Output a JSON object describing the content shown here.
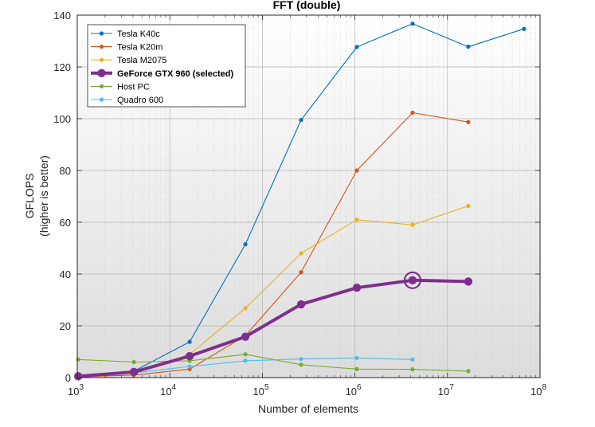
{
  "chart_data": {
    "type": "line",
    "title": "FFT (double)",
    "xlabel": "Number of elements",
    "ylabel_lines": [
      "GFLOPS",
      "(higher is better)"
    ],
    "xscale": "log",
    "xlim": [
      1000,
      100000000
    ],
    "ylim": [
      0,
      140
    ],
    "yticks": [
      0,
      20,
      40,
      60,
      80,
      100,
      120,
      140
    ],
    "xticks": [
      {
        "value": 1000,
        "base": "10",
        "exp": "3"
      },
      {
        "value": 10000,
        "base": "10",
        "exp": "4"
      },
      {
        "value": 100000,
        "base": "10",
        "exp": "5"
      },
      {
        "value": 1000000,
        "base": "10",
        "exp": "6"
      },
      {
        "value": 10000000,
        "base": "10",
        "exp": "7"
      },
      {
        "value": 100000000,
        "base": "10",
        "exp": "8"
      }
    ],
    "grid": true,
    "legend_position": "top-left",
    "series": [
      {
        "name": "Tesla K40c",
        "color": "#0072BD",
        "selected": false,
        "x": [
          1024,
          4096,
          16384,
          65536,
          262144,
          1048576,
          4194304,
          16777216,
          67108864
        ],
        "y": [
          0.5,
          2.5,
          13.8,
          51.5,
          99.5,
          127.7,
          136.7,
          127.8,
          134.7
        ]
      },
      {
        "name": "Tesla K20m",
        "color": "#D95319",
        "selected": false,
        "x": [
          1024,
          4096,
          16384,
          65536,
          262144,
          1048576,
          4194304,
          16777216
        ],
        "y": [
          0.3,
          1.0,
          3.3,
          16.2,
          40.7,
          80.0,
          102.3,
          98.7
        ]
      },
      {
        "name": "Tesla M2075",
        "color": "#EDB120",
        "selected": false,
        "x": [
          1024,
          4096,
          16384,
          65536,
          262144,
          1048576,
          4194304,
          16777216
        ],
        "y": [
          0.7,
          2.0,
          9.0,
          26.8,
          48.0,
          61.0,
          59.0,
          66.3
        ]
      },
      {
        "name": "GeForce GTX 960 (selected)",
        "color": "#7E2F8E",
        "selected": true,
        "x": [
          1024,
          4096,
          16384,
          65536,
          262144,
          1048576,
          4194304,
          16777216
        ],
        "y": [
          0.5,
          2.2,
          8.3,
          15.8,
          28.3,
          34.7,
          37.6,
          37.1
        ],
        "highlight_x": 4194304
      },
      {
        "name": "Host PC",
        "color": "#77AC30",
        "selected": false,
        "x": [
          1024,
          4096,
          16384,
          65536,
          262144,
          1048576,
          4194304,
          16777216
        ],
        "y": [
          7.0,
          6.0,
          6.5,
          9.0,
          5.0,
          3.3,
          3.2,
          2.5
        ]
      },
      {
        "name": "Quadro 600",
        "color": "#4DBEEE",
        "selected": false,
        "x": [
          1024,
          4096,
          16384,
          65536,
          262144,
          1048576,
          4194304
        ],
        "y": [
          0.8,
          1.8,
          4.3,
          6.5,
          7.2,
          7.6,
          7.0
        ]
      }
    ]
  }
}
